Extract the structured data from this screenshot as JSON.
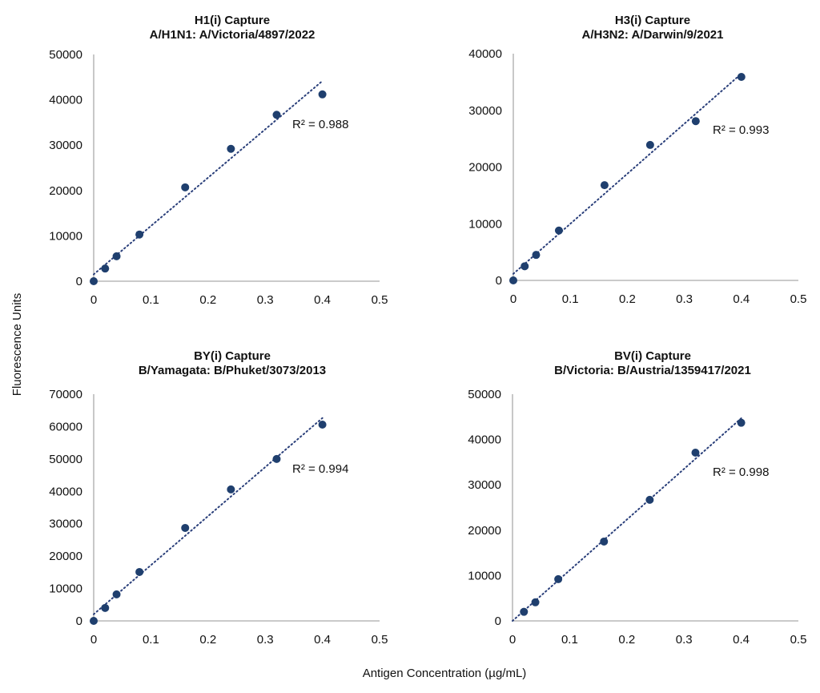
{
  "ylabel": "Fluorescence Units",
  "xlabel": "Antigen Concentration (µg/mL)",
  "colors": {
    "marker": "#1f3f6e",
    "trendline": "#2a3f7a",
    "axis": "#aaaaaa"
  },
  "chart_data": [
    {
      "type": "scatter",
      "title": [
        "H1(i) Capture",
        "A/H1N1: A/Victoria/4897/2022"
      ],
      "x": [
        0,
        0.02,
        0.04,
        0.08,
        0.16,
        0.24,
        0.32,
        0.4
      ],
      "y": [
        0,
        2800,
        5500,
        10300,
        20700,
        29200,
        36700,
        41200
      ],
      "trendline": "linear",
      "annotation": "R² = 0.988",
      "xlim": [
        0,
        0.5
      ],
      "ylim": [
        0,
        50000
      ],
      "xticks": [
        "0",
        "0.1",
        "0.2",
        "0.3",
        "0.4",
        "0.5"
      ],
      "yticks": [
        "0",
        "10000",
        "20000",
        "30000",
        "40000",
        "50000"
      ],
      "grid": false
    },
    {
      "type": "scatter",
      "title": [
        "H3(i) Capture",
        "A/H3N2: A/Darwin/9/2021"
      ],
      "x": [
        0,
        0.02,
        0.04,
        0.08,
        0.16,
        0.24,
        0.32,
        0.4
      ],
      "y": [
        0,
        2500,
        4500,
        8800,
        16800,
        23900,
        28100,
        35900
      ],
      "trendline": "linear",
      "annotation": "R² = 0.993",
      "xlim": [
        0,
        0.5
      ],
      "ylim": [
        0,
        40000
      ],
      "xticks": [
        "0",
        "0.1",
        "0.2",
        "0.3",
        "0.4",
        "0.5"
      ],
      "yticks": [
        "0",
        "10000",
        "20000",
        "30000",
        "40000"
      ],
      "grid": false
    },
    {
      "type": "scatter",
      "title": [
        "BY(i) Capture",
        "B/Yamagata: B/Phuket/3073/2013"
      ],
      "x": [
        0,
        0.02,
        0.04,
        0.08,
        0.16,
        0.24,
        0.32,
        0.4
      ],
      "y": [
        0,
        4000,
        8200,
        15100,
        28700,
        40600,
        50000,
        60600
      ],
      "trendline": "linear",
      "annotation": "R² = 0.994",
      "xlim": [
        0,
        0.5
      ],
      "ylim": [
        0,
        70000
      ],
      "xticks": [
        "0",
        "0.1",
        "0.2",
        "0.3",
        "0.4",
        "0.5"
      ],
      "yticks": [
        "0",
        "10000",
        "20000",
        "30000",
        "40000",
        "50000",
        "60000",
        "70000"
      ],
      "grid": false
    },
    {
      "type": "scatter",
      "title": [
        "BV(i) Capture",
        "B/Victoria: B/Austria/1359417/2021"
      ],
      "x": [
        0.02,
        0.04,
        0.08,
        0.16,
        0.24,
        0.32,
        0.4
      ],
      "y": [
        2000,
        4100,
        9200,
        17500,
        26700,
        37100,
        43700
      ],
      "trendline": "linear",
      "annotation": "R² = 0.998",
      "xlim": [
        0,
        0.5
      ],
      "ylim": [
        0,
        50000
      ],
      "xticks": [
        "0",
        "0.1",
        "0.2",
        "0.3",
        "0.4",
        "0.5"
      ],
      "yticks": [
        "0",
        "10000",
        "20000",
        "30000",
        "40000",
        "50000"
      ],
      "grid": false
    }
  ]
}
